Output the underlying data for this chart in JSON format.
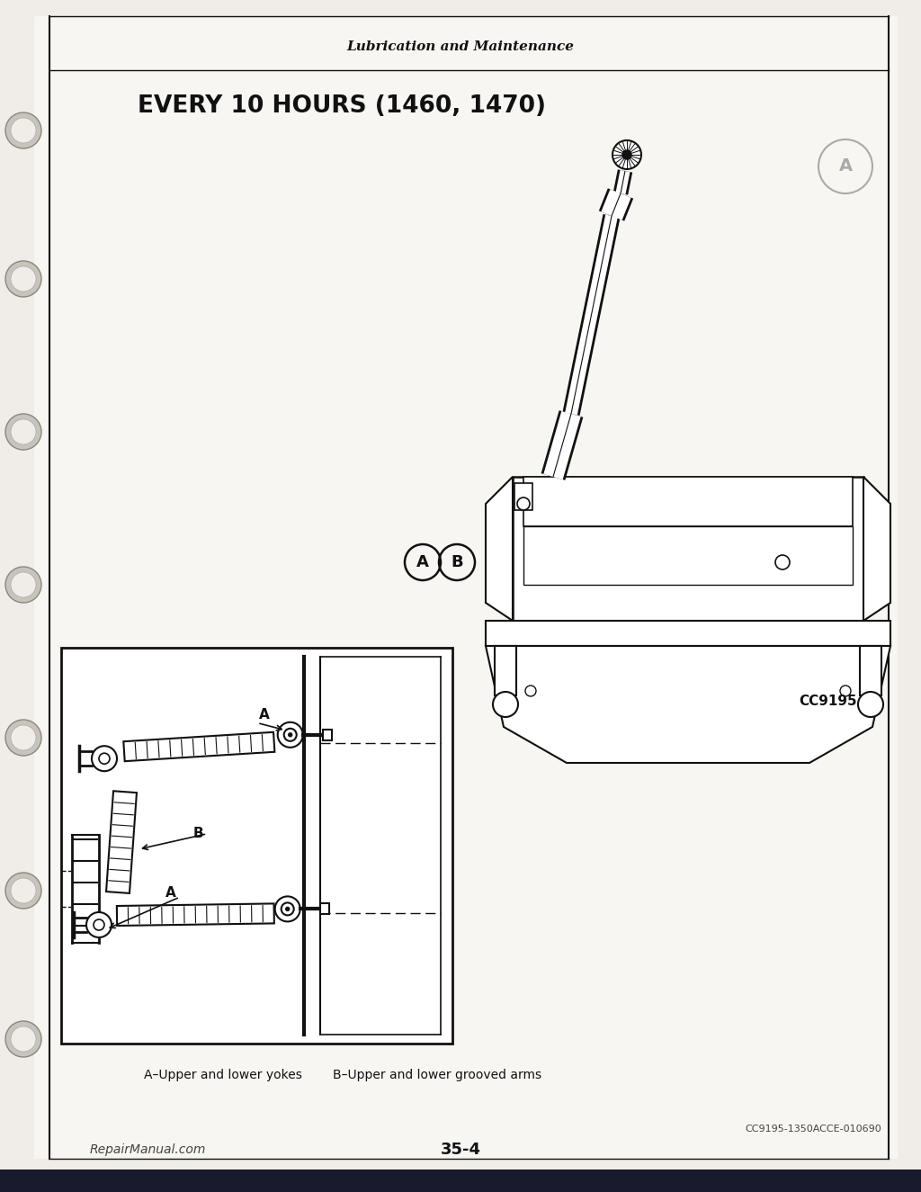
{
  "page_bg": "#f0ede8",
  "content_bg": "#f8f6f2",
  "border_color": "#222222",
  "title_header": "Lubrication and Maintenance",
  "main_title": "EVERY 10 HOURS (1460, 1470)",
  "label_a": "A",
  "label_b": "B",
  "label_cc": "CC9195",
  "label_code": "CC9195-1350ACCE-010690",
  "page_number": "35-4",
  "watermark": "RepairManual.com",
  "caption_a": "A–Upper and lower yokes",
  "caption_b": "B–Upper and lower grooved arms",
  "line_color": "#111111",
  "dark_line": "#000000",
  "hole_color": "#555555"
}
